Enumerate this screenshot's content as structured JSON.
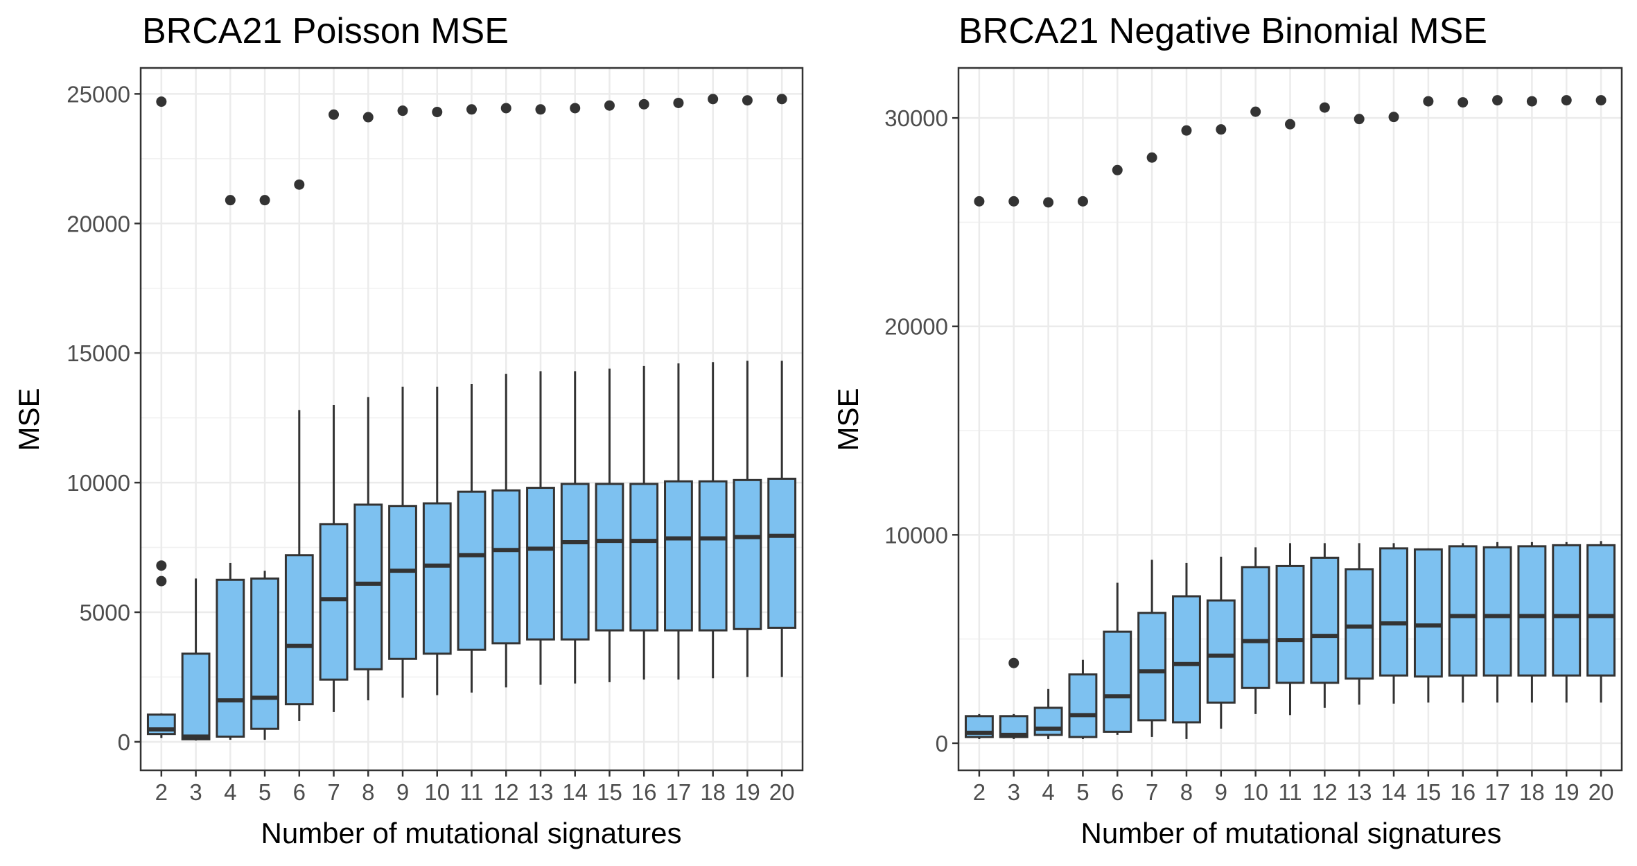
{
  "chart_data": [
    {
      "type": "box",
      "title": "BRCA21 Poisson MSE",
      "xlabel": "Number of mutational signatures",
      "ylabel": "MSE",
      "ylim": [
        -1100,
        26000
      ],
      "yticks": [
        0,
        5000,
        10000,
        15000,
        20000,
        25000
      ],
      "grid": true,
      "fill_color": "#7dc1f0",
      "categories": [
        "2",
        "3",
        "4",
        "5",
        "6",
        "7",
        "8",
        "9",
        "10",
        "11",
        "12",
        "13",
        "14",
        "15",
        "16",
        "17",
        "18",
        "19",
        "20"
      ],
      "boxes": [
        {
          "whisker_low": 150,
          "q1": 300,
          "median": 480,
          "q3": 1050,
          "whisker_high": 1100,
          "outliers": [
            6200,
            6800,
            24700
          ]
        },
        {
          "whisker_low": 50,
          "q1": 100,
          "median": 200,
          "q3": 3400,
          "whisker_high": 6300,
          "outliers": []
        },
        {
          "whisker_low": 80,
          "q1": 200,
          "median": 1600,
          "q3": 6250,
          "whisker_high": 6900,
          "outliers": [
            20900
          ]
        },
        {
          "whisker_low": 80,
          "q1": 500,
          "median": 1700,
          "q3": 6300,
          "whisker_high": 6600,
          "outliers": [
            20900
          ]
        },
        {
          "whisker_low": 800,
          "q1": 1450,
          "median": 3700,
          "q3": 7200,
          "whisker_high": 12800,
          "outliers": [
            21500
          ]
        },
        {
          "whisker_low": 1150,
          "q1": 2400,
          "median": 5500,
          "q3": 8400,
          "whisker_high": 13000,
          "outliers": [
            24200
          ]
        },
        {
          "whisker_low": 1600,
          "q1": 2800,
          "median": 6100,
          "q3": 9150,
          "whisker_high": 13300,
          "outliers": [
            24100
          ]
        },
        {
          "whisker_low": 1700,
          "q1": 3200,
          "median": 6600,
          "q3": 9100,
          "whisker_high": 13700,
          "outliers": [
            24350
          ]
        },
        {
          "whisker_low": 1800,
          "q1": 3400,
          "median": 6800,
          "q3": 9200,
          "whisker_high": 13700,
          "outliers": [
            24300
          ]
        },
        {
          "whisker_low": 1900,
          "q1": 3550,
          "median": 7200,
          "q3": 9650,
          "whisker_high": 13800,
          "outliers": [
            24400
          ]
        },
        {
          "whisker_low": 2100,
          "q1": 3800,
          "median": 7400,
          "q3": 9700,
          "whisker_high": 14200,
          "outliers": [
            24450
          ]
        },
        {
          "whisker_low": 2200,
          "q1": 3950,
          "median": 7450,
          "q3": 9800,
          "whisker_high": 14300,
          "outliers": [
            24400
          ]
        },
        {
          "whisker_low": 2250,
          "q1": 3950,
          "median": 7700,
          "q3": 9950,
          "whisker_high": 14300,
          "outliers": [
            24450
          ]
        },
        {
          "whisker_low": 2300,
          "q1": 4300,
          "median": 7750,
          "q3": 9950,
          "whisker_high": 14400,
          "outliers": [
            24550
          ]
        },
        {
          "whisker_low": 2400,
          "q1": 4300,
          "median": 7750,
          "q3": 9950,
          "whisker_high": 14500,
          "outliers": [
            24600
          ]
        },
        {
          "whisker_low": 2400,
          "q1": 4300,
          "median": 7850,
          "q3": 10050,
          "whisker_high": 14600,
          "outliers": [
            24650
          ]
        },
        {
          "whisker_low": 2450,
          "q1": 4300,
          "median": 7850,
          "q3": 10050,
          "whisker_high": 14650,
          "outliers": [
            24800
          ]
        },
        {
          "whisker_low": 2500,
          "q1": 4350,
          "median": 7900,
          "q3": 10100,
          "whisker_high": 14700,
          "outliers": [
            24750
          ]
        },
        {
          "whisker_low": 2500,
          "q1": 4400,
          "median": 7950,
          "q3": 10150,
          "whisker_high": 14700,
          "outliers": [
            24800
          ]
        }
      ]
    },
    {
      "type": "box",
      "title": "BRCA21 Negative Binomial MSE",
      "xlabel": "Number of mutational signatures",
      "ylabel": "MSE",
      "ylim": [
        -1300,
        32400
      ],
      "yticks": [
        0,
        10000,
        20000,
        30000
      ],
      "grid": true,
      "fill_color": "#7dc1f0",
      "categories": [
        "2",
        "3",
        "4",
        "5",
        "6",
        "7",
        "8",
        "9",
        "10",
        "11",
        "12",
        "13",
        "14",
        "15",
        "16",
        "17",
        "18",
        "19",
        "20"
      ],
      "boxes": [
        {
          "whisker_low": 200,
          "q1": 300,
          "median": 500,
          "q3": 1300,
          "whisker_high": 1400,
          "outliers": [
            26000
          ]
        },
        {
          "whisker_low": 200,
          "q1": 300,
          "median": 400,
          "q3": 1300,
          "whisker_high": 1400,
          "outliers": [
            3850,
            26000
          ]
        },
        {
          "whisker_low": 200,
          "q1": 400,
          "median": 700,
          "q3": 1700,
          "whisker_high": 2600,
          "outliers": [
            25950
          ]
        },
        {
          "whisker_low": 200,
          "q1": 300,
          "median": 1350,
          "q3": 3300,
          "whisker_high": 4000,
          "outliers": [
            26000
          ]
        },
        {
          "whisker_low": 400,
          "q1": 550,
          "median": 2250,
          "q3": 5350,
          "whisker_high": 7700,
          "outliers": [
            27500
          ]
        },
        {
          "whisker_low": 300,
          "q1": 1100,
          "median": 3450,
          "q3": 6250,
          "whisker_high": 8800,
          "outliers": [
            28100
          ]
        },
        {
          "whisker_low": 200,
          "q1": 1000,
          "median": 3800,
          "q3": 7050,
          "whisker_high": 8650,
          "outliers": [
            29400
          ]
        },
        {
          "whisker_low": 700,
          "q1": 1950,
          "median": 4200,
          "q3": 6850,
          "whisker_high": 8950,
          "outliers": [
            29450
          ]
        },
        {
          "whisker_low": 1400,
          "q1": 2650,
          "median": 4900,
          "q3": 8450,
          "whisker_high": 9400,
          "outliers": [
            30300
          ]
        },
        {
          "whisker_low": 1350,
          "q1": 2900,
          "median": 4950,
          "q3": 8500,
          "whisker_high": 9600,
          "outliers": [
            29700
          ]
        },
        {
          "whisker_low": 1700,
          "q1": 2900,
          "median": 5150,
          "q3": 8900,
          "whisker_high": 9600,
          "outliers": [
            30500
          ]
        },
        {
          "whisker_low": 1850,
          "q1": 3100,
          "median": 5600,
          "q3": 8350,
          "whisker_high": 9600,
          "outliers": [
            29950
          ]
        },
        {
          "whisker_low": 1900,
          "q1": 3250,
          "median": 5750,
          "q3": 9350,
          "whisker_high": 9600,
          "outliers": [
            30050
          ]
        },
        {
          "whisker_low": 1950,
          "q1": 3200,
          "median": 5650,
          "q3": 9300,
          "whisker_high": 9350,
          "outliers": [
            30800
          ]
        },
        {
          "whisker_low": 1950,
          "q1": 3250,
          "median": 6100,
          "q3": 9450,
          "whisker_high": 9600,
          "outliers": [
            30750
          ]
        },
        {
          "whisker_low": 1950,
          "q1": 3250,
          "median": 6100,
          "q3": 9400,
          "whisker_high": 9650,
          "outliers": [
            30850
          ]
        },
        {
          "whisker_low": 1950,
          "q1": 3250,
          "median": 6100,
          "q3": 9450,
          "whisker_high": 9650,
          "outliers": [
            30800
          ]
        },
        {
          "whisker_low": 1950,
          "q1": 3250,
          "median": 6100,
          "q3": 9500,
          "whisker_high": 9650,
          "outliers": [
            30850
          ]
        },
        {
          "whisker_low": 1950,
          "q1": 3250,
          "median": 6100,
          "q3": 9500,
          "whisker_high": 9700,
          "outliers": [
            30850
          ]
        }
      ]
    }
  ]
}
